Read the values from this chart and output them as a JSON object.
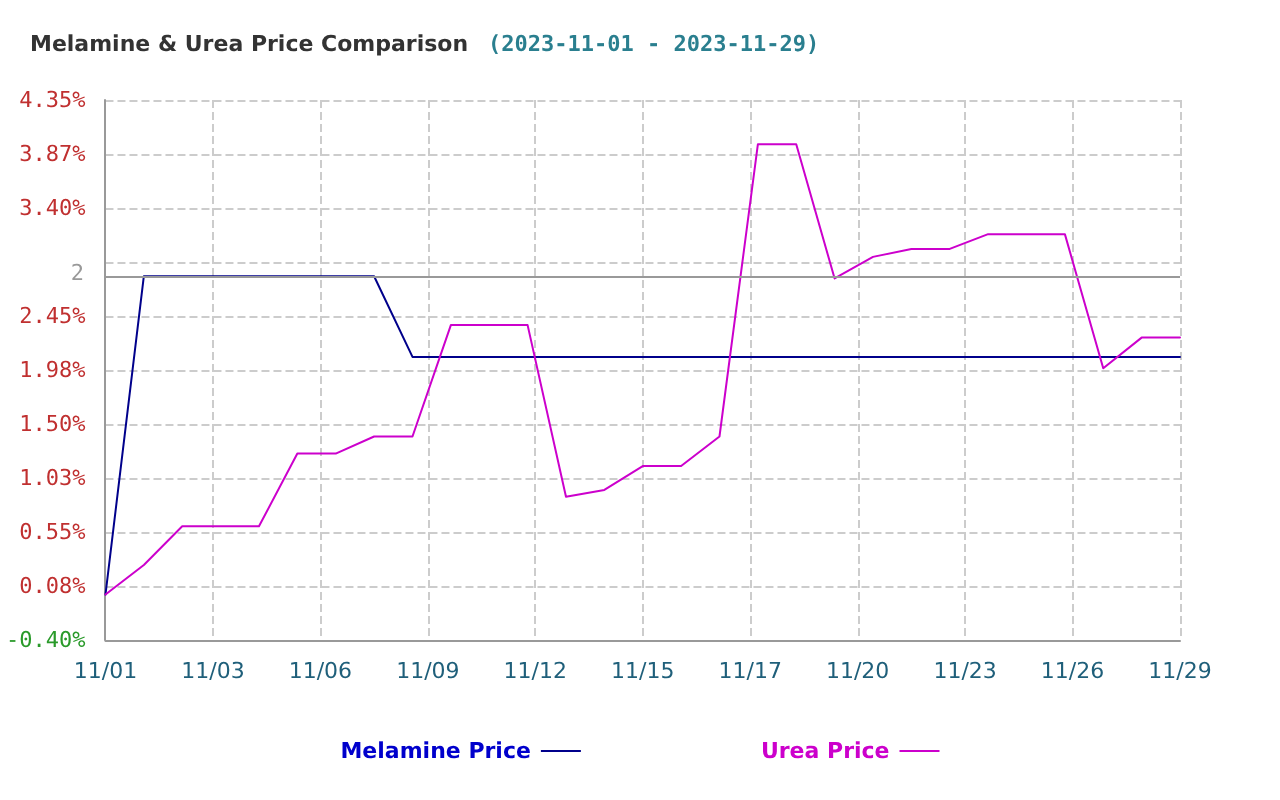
{
  "chart_data": {
    "type": "line",
    "title": "Melamine & Urea Price Comparison",
    "subtitle": "(2023-11-01 - 2023-11-29)",
    "series": [
      {
        "name": "Melamine Price",
        "color": "#00008b",
        "x": [
          "2023-11-01",
          "2023-11-02",
          "2023-11-08",
          "2023-11-09",
          "2023-11-29"
        ],
        "values": [
          0,
          2.8,
          2.8,
          2.09,
          2.09
        ]
      },
      {
        "name": "Urea Price",
        "color": "#cc00cc",
        "x": [
          "2023-11-01",
          "2023-11-02",
          "2023-11-03",
          "2023-11-05",
          "2023-11-06",
          "2023-11-07",
          "2023-11-08",
          "2023-11-09",
          "2023-11-10",
          "2023-11-12",
          "2023-11-13",
          "2023-11-14",
          "2023-11-15",
          "2023-11-16",
          "2023-11-17",
          "2023-11-18",
          "2023-11-19",
          "2023-11-20",
          "2023-11-21",
          "2023-11-22",
          "2023-11-23",
          "2023-11-24",
          "2023-11-26",
          "2023-11-27",
          "2023-11-28",
          "2023-11-29"
        ],
        "values": [
          0,
          0.26,
          0.6,
          0.6,
          1.24,
          1.24,
          1.39,
          1.39,
          2.37,
          2.37,
          0.86,
          0.92,
          1.13,
          1.13,
          1.39,
          3.96,
          3.96,
          2.78,
          2.97,
          3.04,
          3.04,
          3.17,
          3.17,
          1.99,
          2.26,
          2.26
        ]
      }
    ],
    "xlim": [
      "2023-11-01",
      "2023-11-29"
    ],
    "xticks": [
      {
        "value": "2023-11-01",
        "label": "11/01"
      },
      {
        "value": "2023-11-03T19:12",
        "label": "11/03"
      },
      {
        "value": "2023-11-06T14:24",
        "label": "11/06"
      },
      {
        "value": "2023-11-09T09:36",
        "label": "11/09"
      },
      {
        "value": "2023-11-12T04:48",
        "label": "11/12"
      },
      {
        "value": "2023-11-15",
        "label": "11/15"
      },
      {
        "value": "2023-11-17T19:12",
        "label": "11/17"
      },
      {
        "value": "2023-11-20T14:24",
        "label": "11/20"
      },
      {
        "value": "2023-11-23T09:36",
        "label": "11/23"
      },
      {
        "value": "2023-11-26T04:48",
        "label": "11/26"
      },
      {
        "value": "2023-11-29",
        "label": "11/29"
      }
    ],
    "ylim": [
      -0.4,
      4.35
    ],
    "yticks": [
      {
        "value": -0.4,
        "label": "-0.40%"
      },
      {
        "value": 0.075,
        "label": "0.08%"
      },
      {
        "value": 0.55,
        "label": "0.55%"
      },
      {
        "value": 1.025,
        "label": "1.03%"
      },
      {
        "value": 1.5,
        "label": "1.50%"
      },
      {
        "value": 1.975,
        "label": "1.98%"
      },
      {
        "value": 2.45,
        "label": "2.45%"
      },
      {
        "value": 2.925,
        "label": null
      },
      {
        "value": 3.4,
        "label": "3.40%"
      },
      {
        "value": 3.875,
        "label": "3.87%"
      },
      {
        "value": 4.35,
        "label": "4.35%"
      }
    ],
    "ref_lines": [
      {
        "axis": "y",
        "value": 2.8,
        "color": "#999999"
      }
    ],
    "annotations": [
      "2"
    ],
    "grid": true,
    "legend": "bottom",
    "marker": "none",
    "line_style": "solid"
  }
}
